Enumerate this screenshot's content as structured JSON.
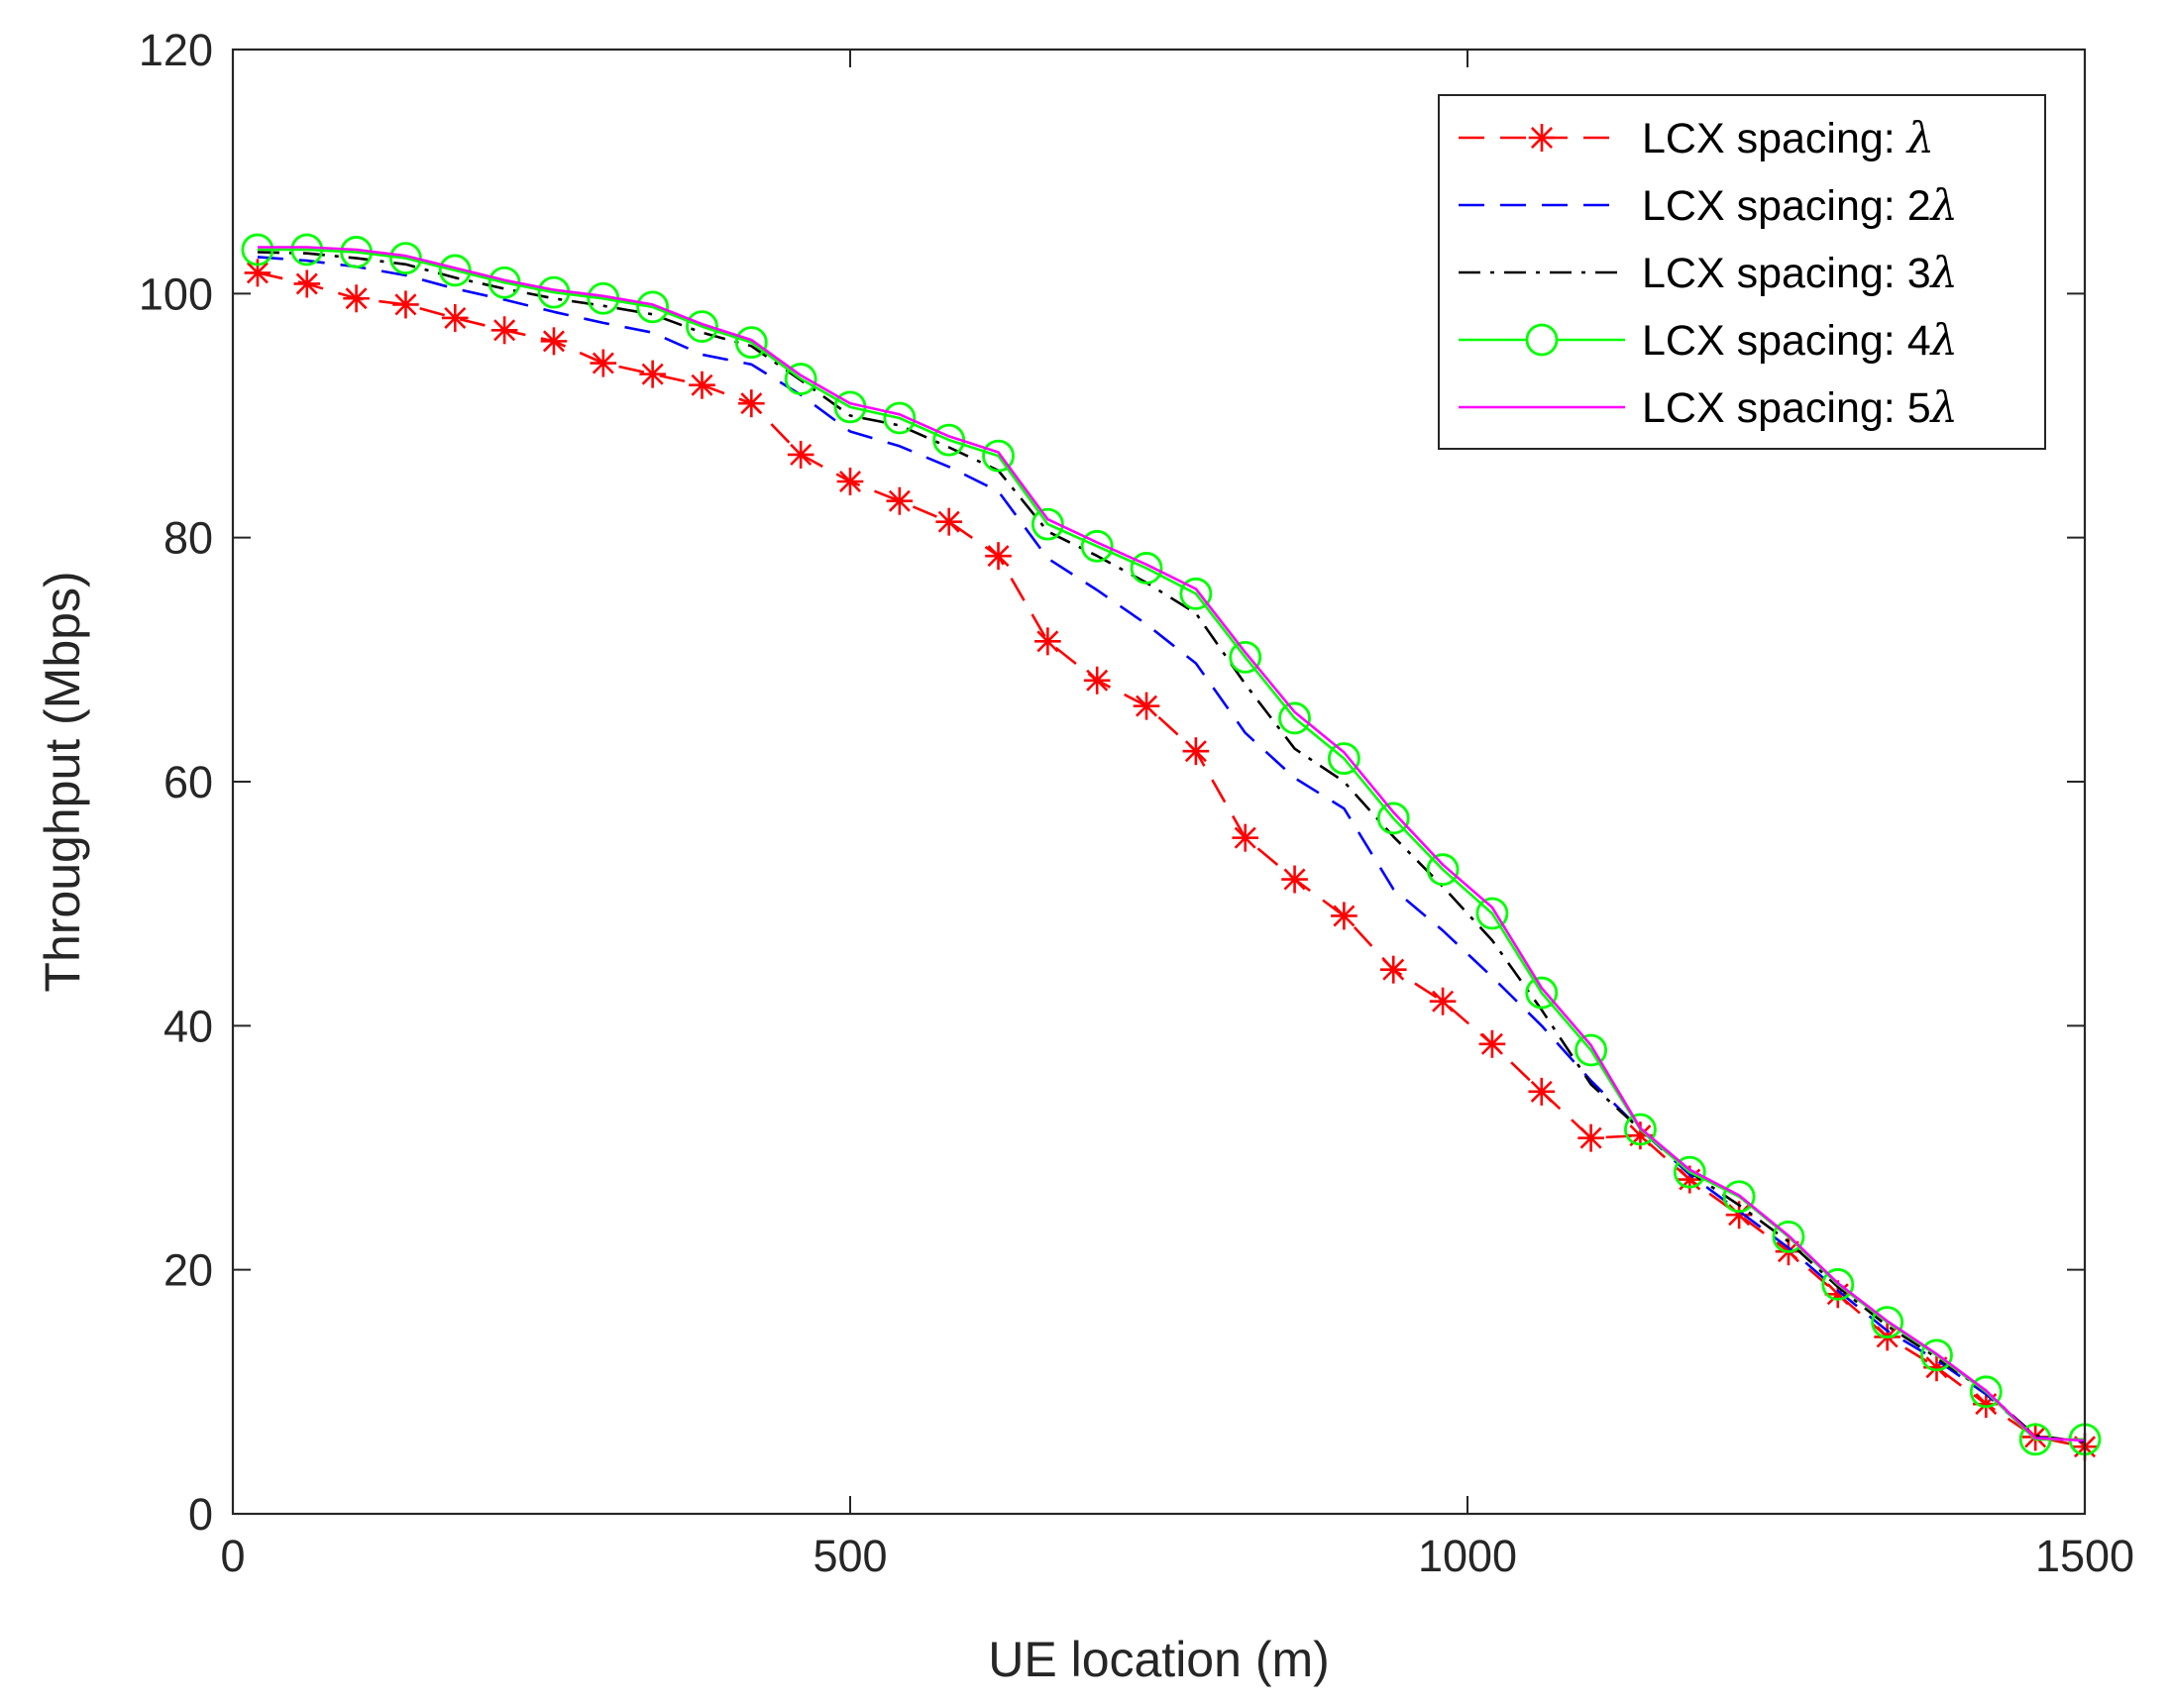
{
  "chart_data": {
    "type": "line",
    "title": "",
    "xlabel": "UE location (m)",
    "ylabel": "Throughput (Mbps)",
    "xlim": [
      0,
      1500
    ],
    "ylim": [
      0,
      120
    ],
    "xticks": [
      0,
      500,
      1000,
      1500
    ],
    "yticks": [
      0,
      20,
      40,
      60,
      80,
      100,
      120
    ],
    "grid": false,
    "legend_position": "top-right",
    "x": [
      20,
      60,
      100,
      140,
      180,
      220,
      260,
      300,
      340,
      380,
      420,
      460,
      500,
      540,
      580,
      620,
      660,
      700,
      740,
      780,
      820,
      860,
      900,
      940,
      980,
      1020,
      1060,
      1100,
      1140,
      1180,
      1220,
      1260,
      1300,
      1340,
      1380,
      1420,
      1460,
      1500
    ],
    "series": [
      {
        "name": "LCX spacing: ",
        "multiplier": "",
        "symbol": "λ",
        "color": "#ff0000",
        "dash": "dashed",
        "marker": "asterisk",
        "values": [
          101.7,
          100.8,
          99.6,
          99.1,
          98.0,
          97.0,
          96.1,
          94.3,
          93.4,
          92.5,
          91.0,
          86.8,
          84.6,
          83.0,
          81.3,
          78.5,
          71.5,
          68.3,
          66.2,
          62.5,
          55.4,
          52.0,
          49.0,
          44.6,
          42.0,
          38.5,
          34.6,
          30.8,
          31.0,
          27.4,
          24.5,
          21.5,
          18.0,
          14.5,
          12.0,
          9.0,
          6.3,
          5.5
        ]
      },
      {
        "name": "LCX spacing: ",
        "multiplier": "2",
        "symbol": "λ",
        "color": "#0000ff",
        "dash": "dashed",
        "marker": "none",
        "values": [
          103.0,
          102.7,
          102.2,
          101.5,
          100.4,
          99.5,
          98.5,
          97.6,
          96.8,
          95.0,
          94.2,
          91.7,
          88.7,
          87.5,
          85.8,
          83.8,
          78.3,
          75.7,
          72.9,
          69.7,
          64.0,
          60.3,
          57.8,
          51.2,
          47.8,
          44.0,
          40.0,
          35.5,
          31.5,
          27.8,
          24.8,
          21.8,
          18.3,
          15.0,
          12.6,
          9.8,
          6.3,
          5.9
        ]
      },
      {
        "name": "LCX spacing: ",
        "multiplier": "3",
        "symbol": "λ",
        "color": "#000000",
        "dash": "dashdot",
        "marker": "none",
        "values": [
          103.4,
          103.3,
          102.9,
          102.4,
          101.3,
          100.4,
          99.6,
          99.0,
          98.3,
          96.8,
          95.7,
          92.9,
          90.0,
          89.2,
          87.4,
          85.5,
          80.5,
          78.5,
          76.3,
          73.8,
          68.0,
          62.7,
          60.0,
          55.5,
          51.4,
          47.0,
          41.3,
          35.2,
          31.5,
          28.0,
          25.3,
          22.3,
          18.6,
          15.4,
          12.8,
          10.0,
          6.4,
          5.9
        ]
      },
      {
        "name": "LCX spacing: ",
        "multiplier": "4",
        "symbol": "λ",
        "color": "#00ff00",
        "dash": "solid",
        "marker": "circle",
        "values": [
          103.6,
          103.6,
          103.4,
          102.9,
          101.9,
          100.9,
          100.1,
          99.6,
          98.9,
          97.3,
          96.0,
          93.0,
          90.7,
          89.8,
          88.0,
          86.7,
          81.1,
          79.3,
          77.5,
          75.4,
          70.2,
          65.2,
          61.9,
          57.0,
          52.8,
          49.2,
          42.7,
          38.0,
          31.5,
          28.0,
          26.0,
          22.7,
          18.8,
          15.7,
          13.0,
          10.0,
          6.1,
          6.1
        ]
      },
      {
        "name": "LCX spacing: ",
        "multiplier": "5",
        "symbol": "λ",
        "color": "#ff00ff",
        "dash": "solid",
        "marker": "none",
        "values": [
          103.8,
          103.8,
          103.6,
          103.1,
          102.1,
          101.1,
          100.3,
          99.8,
          99.1,
          97.5,
          96.2,
          93.3,
          91.0,
          90.1,
          88.3,
          87.0,
          81.5,
          79.6,
          77.8,
          75.8,
          70.6,
          65.7,
          62.4,
          57.5,
          53.2,
          49.7,
          43.1,
          38.4,
          31.6,
          28.2,
          26.1,
          22.8,
          18.9,
          15.8,
          13.1,
          10.1,
          6.2,
          6.0
        ]
      }
    ]
  }
}
